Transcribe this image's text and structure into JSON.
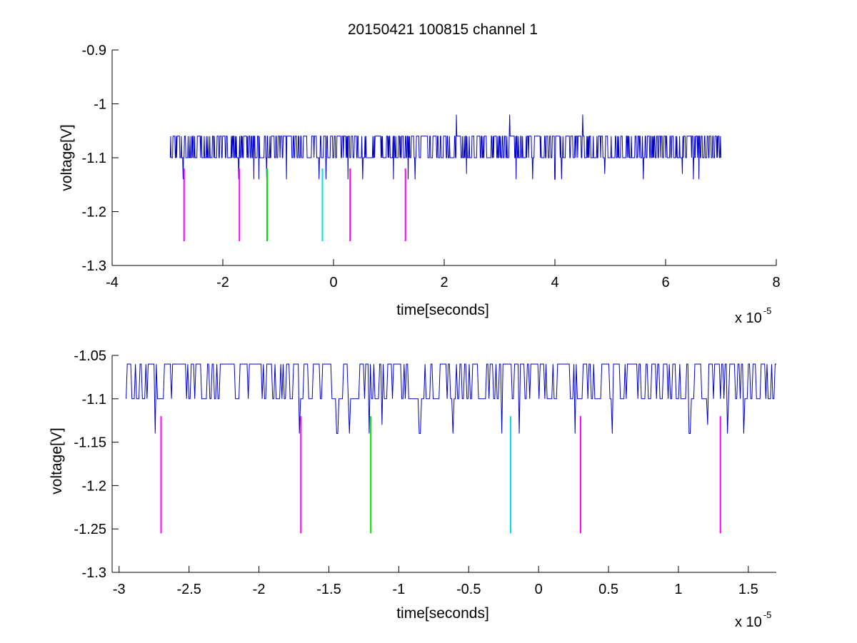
{
  "figure": {
    "title": "20150421 100815 channel 1",
    "colors": {
      "signal": "#0000cc",
      "marker_magenta": "#ff00ff",
      "marker_green": "#00e000",
      "marker_cyan": "#00e0e0",
      "axes": "#000000",
      "background": "#ffffff"
    }
  },
  "chart_data": [
    {
      "type": "line",
      "title": "20150421 100815 channel 1",
      "xlabel": "time[seconds]",
      "ylabel": "voltage[V]",
      "x_exponent": {
        "base": "x 10",
        "power": "-5"
      },
      "xlim": [
        -4e-05,
        8e-05
      ],
      "ylim": [
        -1.3,
        -0.9
      ],
      "xticks": [
        -4e-05,
        -2e-05,
        0,
        2e-05,
        4e-05,
        6e-05,
        8e-05
      ],
      "xtick_labels": [
        "-4",
        "-2",
        "0",
        "2",
        "4",
        "6",
        "8"
      ],
      "yticks": [
        -1.3,
        -1.2,
        -1.1,
        -1.0,
        -0.9
      ],
      "ytick_labels": [
        "-1.3",
        "-1.2",
        "-1.1",
        "-1",
        "-0.9"
      ],
      "grid": false,
      "series": [
        {
          "style": "noisy-two-level",
          "x_start": -2.95e-05,
          "x_end": 7e-05,
          "sample_count": 1200,
          "high_level": -1.06,
          "low_level": -1.1,
          "dips": [
            {
              "x": -2.72e-05,
              "y": -1.14
            },
            {
              "x": -1.71e-05,
              "y": -1.14
            },
            {
              "x": -1.44e-05,
              "y": -1.14
            },
            {
              "x": -1.35e-05,
              "y": -1.14
            },
            {
              "x": -1.21e-05,
              "y": -1.14
            },
            {
              "x": -8.5e-06,
              "y": -1.14
            },
            {
              "x": -2.6e-06,
              "y": -1.14
            },
            {
              "x": -1.4e-06,
              "y": -1.14
            },
            {
              "x": 2.6e-06,
              "y": -1.14
            },
            {
              "x": 5.3e-06,
              "y": -1.14
            },
            {
              "x": 1.08e-05,
              "y": -1.14
            },
            {
              "x": 1.35e-05,
              "y": -1.14
            },
            {
              "x": 1.47e-05,
              "y": -1.14
            },
            {
              "x": 2.4e-05,
              "y": -1.13
            },
            {
              "x": 3.3e-05,
              "y": -1.14
            },
            {
              "x": 3.6e-05,
              "y": -1.14
            },
            {
              "x": 4e-05,
              "y": -1.14
            },
            {
              "x": 4.12e-05,
              "y": -1.14
            },
            {
              "x": 4.9e-05,
              "y": -1.13
            },
            {
              "x": 5.6e-05,
              "y": -1.14
            },
            {
              "x": 6.3e-05,
              "y": -1.13
            },
            {
              "x": 6.5e-05,
              "y": -1.14
            },
            {
              "x": 6.6e-05,
              "y": -1.14
            }
          ],
          "peaks": [
            {
              "x": 2.22e-05,
              "y": -1.02
            },
            {
              "x": 3.18e-05,
              "y": -1.02
            },
            {
              "x": 4.5e-05,
              "y": -1.02
            }
          ]
        }
      ],
      "markers": [
        {
          "x": -2.7e-05,
          "y_top": -1.12,
          "y_bottom": -1.255,
          "color": "magenta"
        },
        {
          "x": -1.7e-05,
          "y_top": -1.12,
          "y_bottom": -1.255,
          "color": "magenta"
        },
        {
          "x": -1.2e-05,
          "y_top": -1.12,
          "y_bottom": -1.255,
          "color": "green"
        },
        {
          "x": -2e-06,
          "y_top": -1.12,
          "y_bottom": -1.255,
          "color": "cyan"
        },
        {
          "x": 3e-06,
          "y_top": -1.12,
          "y_bottom": -1.255,
          "color": "magenta"
        },
        {
          "x": 1.3e-05,
          "y_top": -1.12,
          "y_bottom": -1.255,
          "color": "magenta"
        }
      ]
    },
    {
      "type": "line",
      "xlabel": "time[seconds]",
      "ylabel": "voltage[V]",
      "x_exponent": {
        "base": "x 10",
        "power": "-5"
      },
      "xlim": [
        -3.05e-05,
        1.7e-05
      ],
      "ylim": [
        -1.3,
        -1.05
      ],
      "xticks": [
        -3e-05,
        -2.5e-05,
        -2e-05,
        -1.5e-05,
        -1e-05,
        -5e-06,
        0,
        5e-06,
        1e-05,
        1.5e-05
      ],
      "xtick_labels": [
        "-3",
        "-2.5",
        "-2",
        "-1.5",
        "-1",
        "-0.5",
        "0",
        "0.5",
        "1",
        "1.5"
      ],
      "yticks": [
        -1.3,
        -1.25,
        -1.2,
        -1.15,
        -1.1,
        -1.05
      ],
      "ytick_labels": [
        "-1.3",
        "-1.25",
        "-1.2",
        "-1.15",
        "-1.1",
        "-1.05"
      ],
      "grid": false,
      "series": [
        {
          "style": "noisy-two-level",
          "x_start": -2.95e-05,
          "x_end": 1.7e-05,
          "sample_count": 560,
          "high_level": -1.06,
          "low_level": -1.1,
          "dips": [
            {
              "x": -2.74e-05,
              "y": -1.14
            },
            {
              "x": -1.71e-05,
              "y": -1.14
            },
            {
              "x": -1.44e-05,
              "y": -1.14
            },
            {
              "x": -1.35e-05,
              "y": -1.14
            },
            {
              "x": -1.21e-05,
              "y": -1.14
            },
            {
              "x": -1.12e-05,
              "y": -1.13
            },
            {
              "x": -8.5e-06,
              "y": -1.14
            },
            {
              "x": -6.1e-06,
              "y": -1.14
            },
            {
              "x": -2.6e-06,
              "y": -1.14
            },
            {
              "x": -1.4e-06,
              "y": -1.14
            },
            {
              "x": 2.6e-06,
              "y": -1.14
            },
            {
              "x": 5.3e-06,
              "y": -1.14
            },
            {
              "x": 1.08e-05,
              "y": -1.14
            },
            {
              "x": 1.21e-05,
              "y": -1.13
            },
            {
              "x": 1.35e-05,
              "y": -1.14
            },
            {
              "x": 1.47e-05,
              "y": -1.14
            }
          ],
          "peaks": []
        }
      ],
      "markers": [
        {
          "x": -2.7e-05,
          "y_top": -1.12,
          "y_bottom": -1.255,
          "color": "magenta"
        },
        {
          "x": -1.7e-05,
          "y_top": -1.12,
          "y_bottom": -1.255,
          "color": "magenta"
        },
        {
          "x": -1.2e-05,
          "y_top": -1.12,
          "y_bottom": -1.255,
          "color": "green"
        },
        {
          "x": -2e-06,
          "y_top": -1.12,
          "y_bottom": -1.255,
          "color": "cyan"
        },
        {
          "x": 3e-06,
          "y_top": -1.12,
          "y_bottom": -1.255,
          "color": "magenta"
        },
        {
          "x": 1.3e-05,
          "y_top": -1.12,
          "y_bottom": -1.255,
          "color": "magenta"
        }
      ]
    }
  ]
}
